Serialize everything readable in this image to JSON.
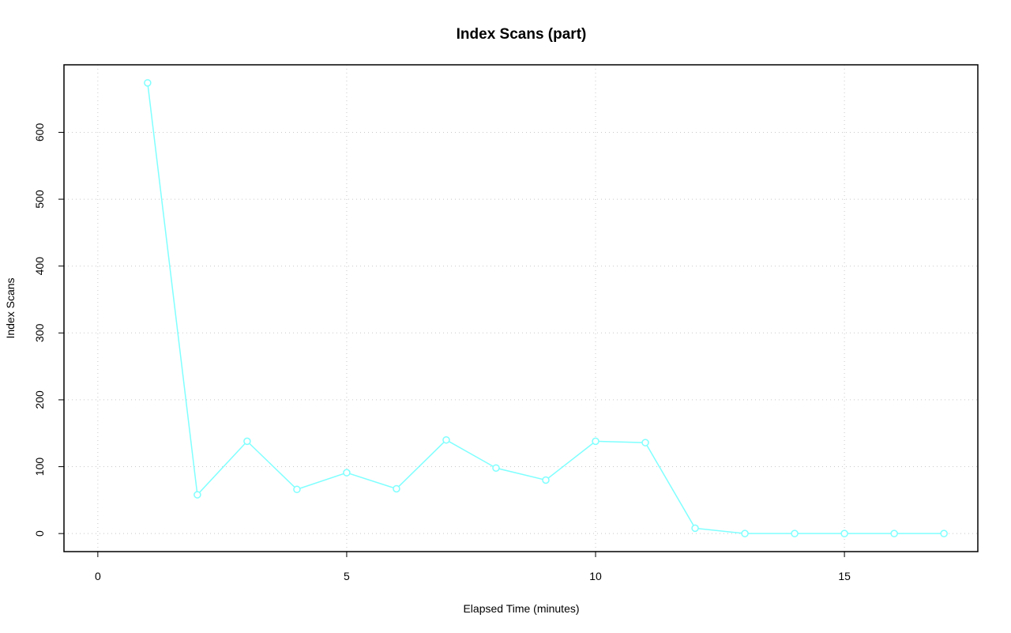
{
  "chart_data": {
    "type": "line",
    "title": "Index Scans (part)",
    "xlabel": "Elapsed Time (minutes)",
    "ylabel": "Index Scans",
    "x": [
      1,
      2,
      3,
      4,
      5,
      6,
      7,
      8,
      9,
      10,
      11,
      12,
      13,
      14,
      15,
      16,
      17
    ],
    "series": [
      {
        "color": "#80ffff",
        "values": [
          674,
          58,
          138,
          66,
          91,
          67,
          140,
          98,
          80,
          138,
          136,
          8,
          0,
          0,
          0,
          0,
          0
        ]
      }
    ],
    "xlim": [
      -0.68,
      17.68
    ],
    "xticks": [
      0,
      5,
      10,
      15
    ],
    "ylim": [
      -27,
      701
    ],
    "yticks": [
      0,
      100,
      200,
      300,
      400,
      500,
      600
    ],
    "grid": true
  }
}
